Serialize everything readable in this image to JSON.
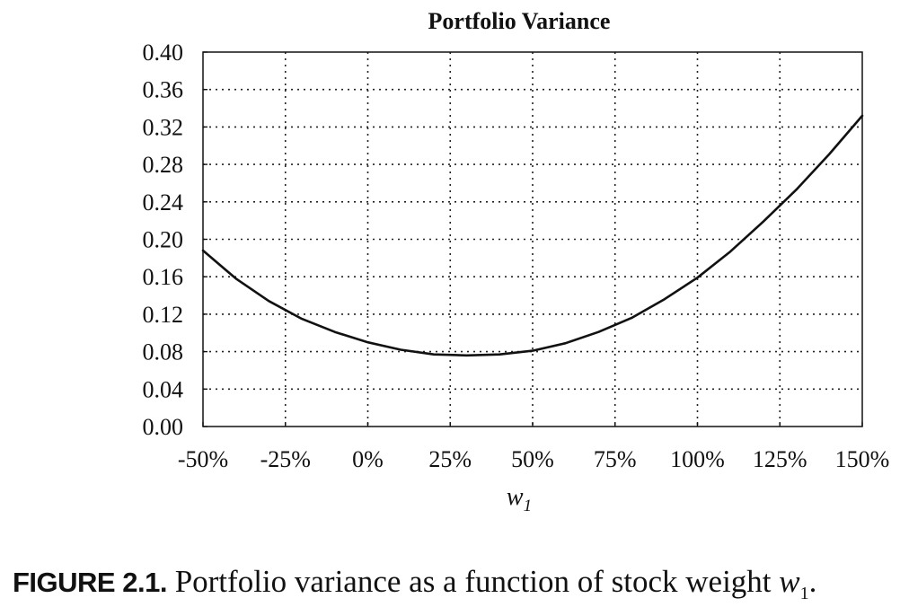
{
  "chart_data": {
    "type": "line",
    "title": "Portfolio Variance",
    "xlabel": "w",
    "xlabel_subscript": "1",
    "ylabel": "",
    "xlim": [
      -0.5,
      1.5
    ],
    "ylim": [
      0.0,
      0.4
    ],
    "x_ticks": [
      -0.5,
      -0.25,
      0.0,
      0.25,
      0.5,
      0.75,
      1.0,
      1.25,
      1.5
    ],
    "x_tick_labels": [
      "-50%",
      "-25%",
      "0%",
      "25%",
      "50%",
      "75%",
      "100%",
      "125%",
      "150%"
    ],
    "y_ticks": [
      0.0,
      0.04,
      0.08,
      0.12,
      0.16,
      0.2,
      0.24,
      0.28,
      0.32,
      0.36,
      0.4
    ],
    "y_tick_labels": [
      "0.00",
      "0.04",
      "0.08",
      "0.12",
      "0.16",
      "0.20",
      "0.24",
      "0.28",
      "0.32",
      "0.36",
      "0.40"
    ],
    "grid": "dotted",
    "legend": "none",
    "line_color": "#111111",
    "series": [
      {
        "x": [
          -0.5,
          -0.4,
          -0.3,
          -0.2,
          -0.1,
          0.0,
          0.1,
          0.2,
          0.3,
          0.4,
          0.5,
          0.6,
          0.7,
          0.8,
          0.9,
          1.0,
          1.1,
          1.2,
          1.3,
          1.4,
          1.5
        ],
        "values": [
          0.188,
          0.158,
          0.134,
          0.115,
          0.101,
          0.09,
          0.082,
          0.077,
          0.076,
          0.077,
          0.081,
          0.089,
          0.101,
          0.116,
          0.136,
          0.159,
          0.187,
          0.219,
          0.253,
          0.291,
          0.332
        ]
      }
    ]
  },
  "caption": {
    "label": "FIGURE 2.1.",
    "text": "Portfolio variance as a function of stock weight",
    "var": "w",
    "sub": "1",
    "end": "."
  }
}
